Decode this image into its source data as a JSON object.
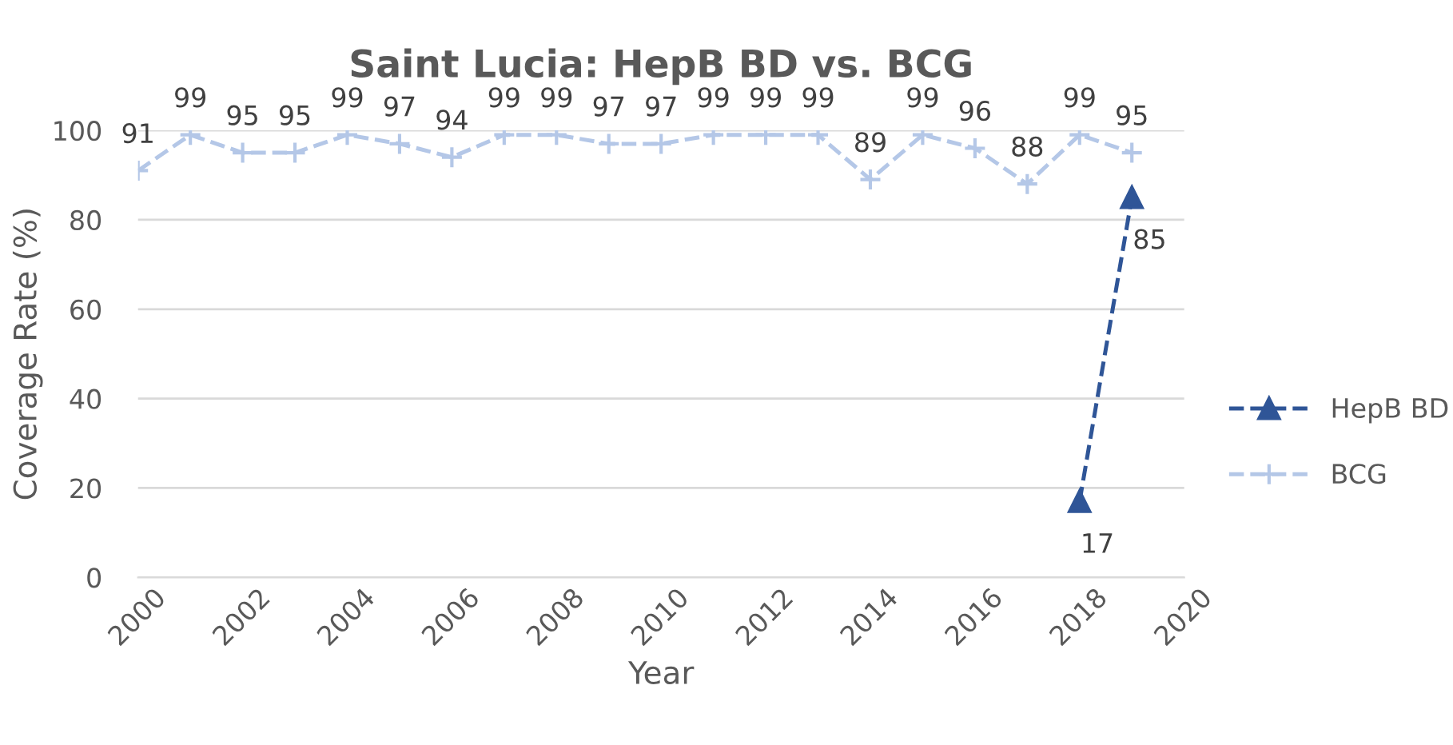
{
  "chart_data": {
    "type": "line",
    "title": "Saint Lucia: HepB BD vs. BCG",
    "xlabel": "Year",
    "ylabel": "Coverage Rate (%)",
    "xlim": [
      2000,
      2020
    ],
    "xticks": [
      2000,
      2002,
      2004,
      2006,
      2008,
      2010,
      2012,
      2014,
      2016,
      2018,
      2020
    ],
    "ylim": [
      0,
      100
    ],
    "yticks": [
      0,
      20,
      40,
      60,
      80,
      100
    ],
    "grid": "y",
    "legend": "right",
    "data_labels": true,
    "line_style": "dashed",
    "series": [
      {
        "name": "HepB BD",
        "color": "#2f5597",
        "marker": "triangle",
        "x": [
          2018,
          2019
        ],
        "values": [
          17,
          85
        ]
      },
      {
        "name": "BCG",
        "color": "#b4c7e7",
        "marker": "cross",
        "x": [
          2000,
          2001,
          2002,
          2003,
          2004,
          2005,
          2006,
          2007,
          2008,
          2009,
          2010,
          2011,
          2012,
          2013,
          2014,
          2015,
          2016,
          2017,
          2018,
          2019
        ],
        "values": [
          91,
          99,
          95,
          95,
          99,
          97,
          94,
          99,
          99,
          97,
          97,
          99,
          99,
          99,
          89,
          99,
          96,
          88,
          99,
          95
        ]
      }
    ]
  }
}
